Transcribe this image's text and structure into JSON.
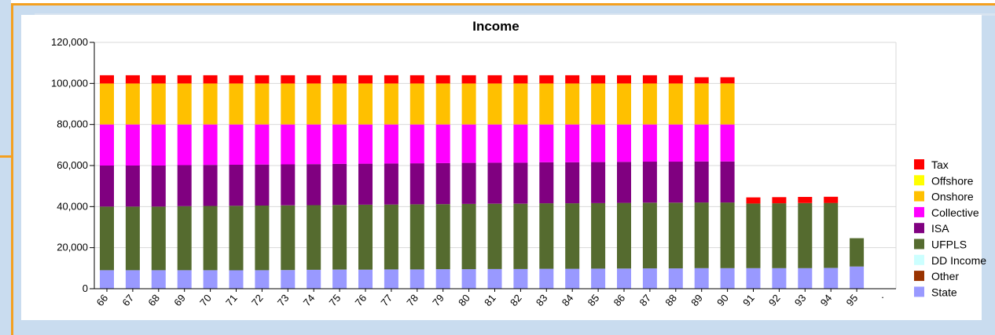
{
  "chart_data": {
    "type": "bar",
    "stacked": true,
    "title": "Income",
    "xlabel": "",
    "ylabel": "",
    "ylim": [
      0,
      120000
    ],
    "yticks": [
      "120,000",
      "100,000",
      "80,000",
      "60,000",
      "40,000",
      "20,000",
      "0"
    ],
    "grid": true,
    "legend_position": "right",
    "categories": [
      "66",
      "67",
      "68",
      "69",
      "70",
      "71",
      "72",
      "73",
      "74",
      "75",
      "76",
      "77",
      "78",
      "79",
      "80",
      "81",
      "82",
      "83",
      "84",
      "85",
      "86",
      "87",
      "88",
      "89",
      "90",
      "91",
      "92",
      "93",
      "94",
      "95"
    ],
    "trailing_tick_label": ".",
    "series": [
      {
        "name": "State",
        "color": "#9999ff",
        "values": [
          9000,
          9000,
          9000,
          9000,
          9000,
          9000,
          9000,
          9100,
          9200,
          9300,
          9300,
          9400,
          9400,
          9500,
          9500,
          9600,
          9600,
          9700,
          9700,
          9800,
          9800,
          9900,
          9900,
          10000,
          10000,
          10000,
          10000,
          10000,
          10100,
          10800
        ]
      },
      {
        "name": "DD Income",
        "color": "#ccffff",
        "values": [
          0,
          0,
          0,
          0,
          0,
          0,
          0,
          0,
          0,
          0,
          0,
          0,
          0,
          0,
          0,
          0,
          0,
          0,
          0,
          0,
          0,
          0,
          0,
          0,
          0,
          0,
          0,
          0,
          0,
          0
        ]
      },
      {
        "name": "Other",
        "color": "#993300",
        "values": [
          0,
          0,
          0,
          0,
          0,
          0,
          0,
          0,
          0,
          0,
          0,
          0,
          0,
          0,
          0,
          0,
          0,
          0,
          0,
          0,
          0,
          0,
          0,
          0,
          0,
          0,
          0,
          0,
          0,
          0
        ]
      },
      {
        "name": "UFPLS",
        "color": "#556b2f",
        "values": [
          31000,
          31000,
          31000,
          31200,
          31300,
          31400,
          31500,
          31500,
          31500,
          31500,
          31600,
          31600,
          31700,
          31700,
          31800,
          31800,
          31800,
          31900,
          31900,
          31900,
          32000,
          32000,
          32000,
          32000,
          32000,
          31500,
          31600,
          31700,
          31700,
          13800
        ]
      },
      {
        "name": "ISA",
        "color": "#800080",
        "values": [
          20000,
          20000,
          20000,
          20000,
          20000,
          20000,
          20000,
          20000,
          20000,
          20000,
          20000,
          20000,
          20000,
          20000,
          20000,
          20000,
          20000,
          20000,
          20000,
          20000,
          20000,
          20000,
          20000,
          20000,
          20000,
          0,
          0,
          0,
          0,
          0
        ]
      },
      {
        "name": "Collective",
        "color": "#ff00ff",
        "values": [
          20000,
          20000,
          20000,
          19800,
          19700,
          19600,
          19500,
          19400,
          19300,
          19200,
          19100,
          19000,
          18900,
          18800,
          18700,
          18600,
          18600,
          18400,
          18400,
          18300,
          18200,
          18100,
          18100,
          18000,
          18000,
          0,
          0,
          0,
          0,
          0
        ]
      },
      {
        "name": "Onshore",
        "color": "#ffc000",
        "values": [
          20000,
          20000,
          20000,
          20000,
          20000,
          20000,
          20000,
          20000,
          20000,
          20000,
          20000,
          20000,
          20000,
          20000,
          20000,
          20000,
          20000,
          20000,
          20000,
          20000,
          20000,
          20000,
          20000,
          20000,
          20000,
          0,
          0,
          0,
          0,
          0
        ]
      },
      {
        "name": "Offshore",
        "color": "#ffff00",
        "values": [
          0,
          0,
          0,
          0,
          0,
          0,
          0,
          0,
          0,
          0,
          0,
          0,
          0,
          0,
          0,
          0,
          0,
          0,
          0,
          0,
          0,
          0,
          0,
          0,
          0,
          0,
          0,
          0,
          0,
          0
        ]
      },
      {
        "name": "Tax",
        "color": "#ff0000",
        "values": [
          4000,
          4000,
          4000,
          4000,
          4000,
          4000,
          4000,
          4000,
          4000,
          4000,
          4000,
          4000,
          4000,
          4000,
          4000,
          4000,
          4000,
          4000,
          4000,
          4000,
          4000,
          4000,
          4000,
          3000,
          3000,
          3000,
          3000,
          3000,
          3000,
          0
        ]
      }
    ],
    "legend_order": [
      "Tax",
      "Offshore",
      "Onshore",
      "Collective",
      "ISA",
      "UFPLS",
      "DD Income",
      "Other",
      "State"
    ]
  }
}
